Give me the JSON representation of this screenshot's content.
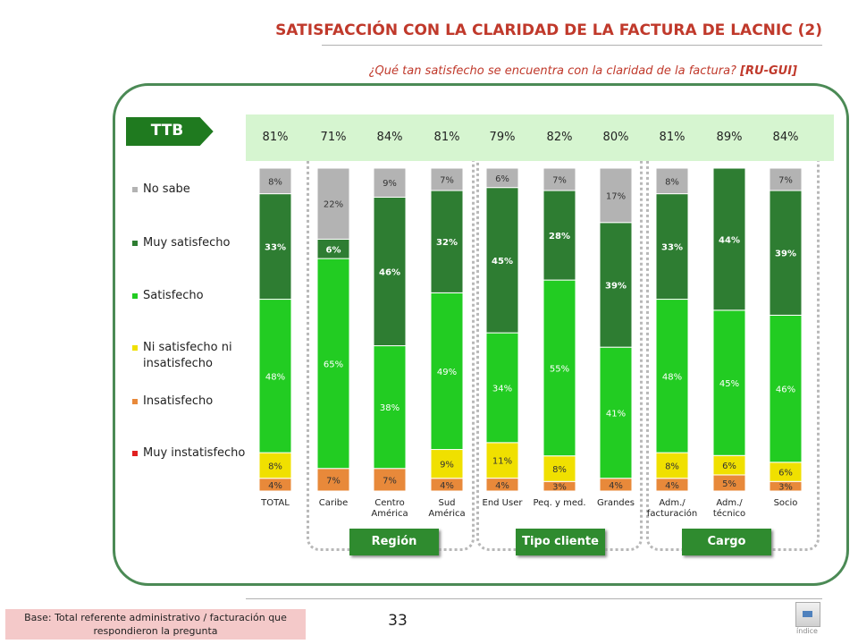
{
  "header": {
    "title": "SATISFACCIÓN CON LA CLARIDAD DE LA FACTURA DE LACNIC (2)",
    "question": "¿Qué tan satisfecho se encuentra con la claridad de la factura?",
    "question_tag": "[RU-GUI]"
  },
  "ttb": {
    "label": "TTB",
    "values": [
      "81%",
      "71%",
      "84%",
      "81%",
      "79%",
      "82%",
      "80%",
      "81%",
      "89%",
      "84%"
    ]
  },
  "legend": {
    "items": [
      {
        "label": "No sabe",
        "color": "#b3b3b3"
      },
      {
        "label": "Muy satisfecho",
        "color": "#2e7d32"
      },
      {
        "label": "Satisfecho",
        "color": "#22cc22"
      },
      {
        "label": "Ni satisfecho ni insatisfecho",
        "color": "#f0e000"
      },
      {
        "label": "Insatisfecho",
        "color": "#e8893a"
      },
      {
        "label": "Muy instatisfecho",
        "color": "#e02020"
      }
    ]
  },
  "groups": {
    "region": "Región",
    "tipo_cliente": "Tipo cliente",
    "cargo": "Cargo"
  },
  "footer": {
    "base_note": "Base: Total referente administrativo / facturación que respondieron la pregunta",
    "page_number": "33",
    "index_label": "índice"
  },
  "chart_data": {
    "type": "bar",
    "stacked": true,
    "percent_scale": true,
    "categories": [
      "TOTAL",
      "Caribe",
      "Centro América",
      "Sud América",
      "End User",
      "Peq. y med.",
      "Grandes",
      "Adm./ facturación",
      "Adm./ técnico",
      "Socio"
    ],
    "series": [
      {
        "name": "Insatisfecho",
        "color": "#e8893a",
        "values": [
          4,
          7,
          7,
          4,
          4,
          3,
          4,
          4,
          5,
          3
        ],
        "labels": [
          "4%",
          "7%",
          "7%",
          "4%",
          "4%",
          "3%",
          "4%",
          "4%",
          "5%",
          "3%"
        ]
      },
      {
        "name": "Ni satisfecho ni insatisfecho",
        "color": "#f0e000",
        "values": [
          8,
          0,
          0,
          9,
          11,
          8,
          0,
          8,
          6,
          6
        ],
        "labels": [
          "8%",
          "",
          "",
          "9%",
          "11%",
          "8%",
          "",
          "8%",
          "6%",
          "6%"
        ]
      },
      {
        "name": "Satisfecho",
        "color": "#22cc22",
        "values": [
          48,
          65,
          38,
          49,
          34,
          55,
          41,
          48,
          45,
          46
        ],
        "labels": [
          "48%",
          "65%",
          "38%",
          "49%",
          "34%",
          "55%",
          "41%",
          "48%",
          "45%",
          "46%"
        ]
      },
      {
        "name": "Muy satisfecho",
        "color": "#2e7d32",
        "values": [
          33,
          6,
          46,
          32,
          45,
          28,
          39,
          33,
          44,
          39
        ],
        "labels": [
          "33%",
          "6%",
          "46%",
          "32%",
          "45%",
          "28%",
          "39%",
          "33%",
          "44%",
          "39%"
        ]
      },
      {
        "name": "No sabe",
        "color": "#b3b3b3",
        "values": [
          8,
          22,
          9,
          7,
          6,
          7,
          17,
          8,
          0,
          7
        ],
        "labels": [
          "8%",
          "22%",
          "9%",
          "7%",
          "6%",
          "7%",
          "17%",
          "8%",
          "",
          "7%"
        ]
      }
    ]
  }
}
